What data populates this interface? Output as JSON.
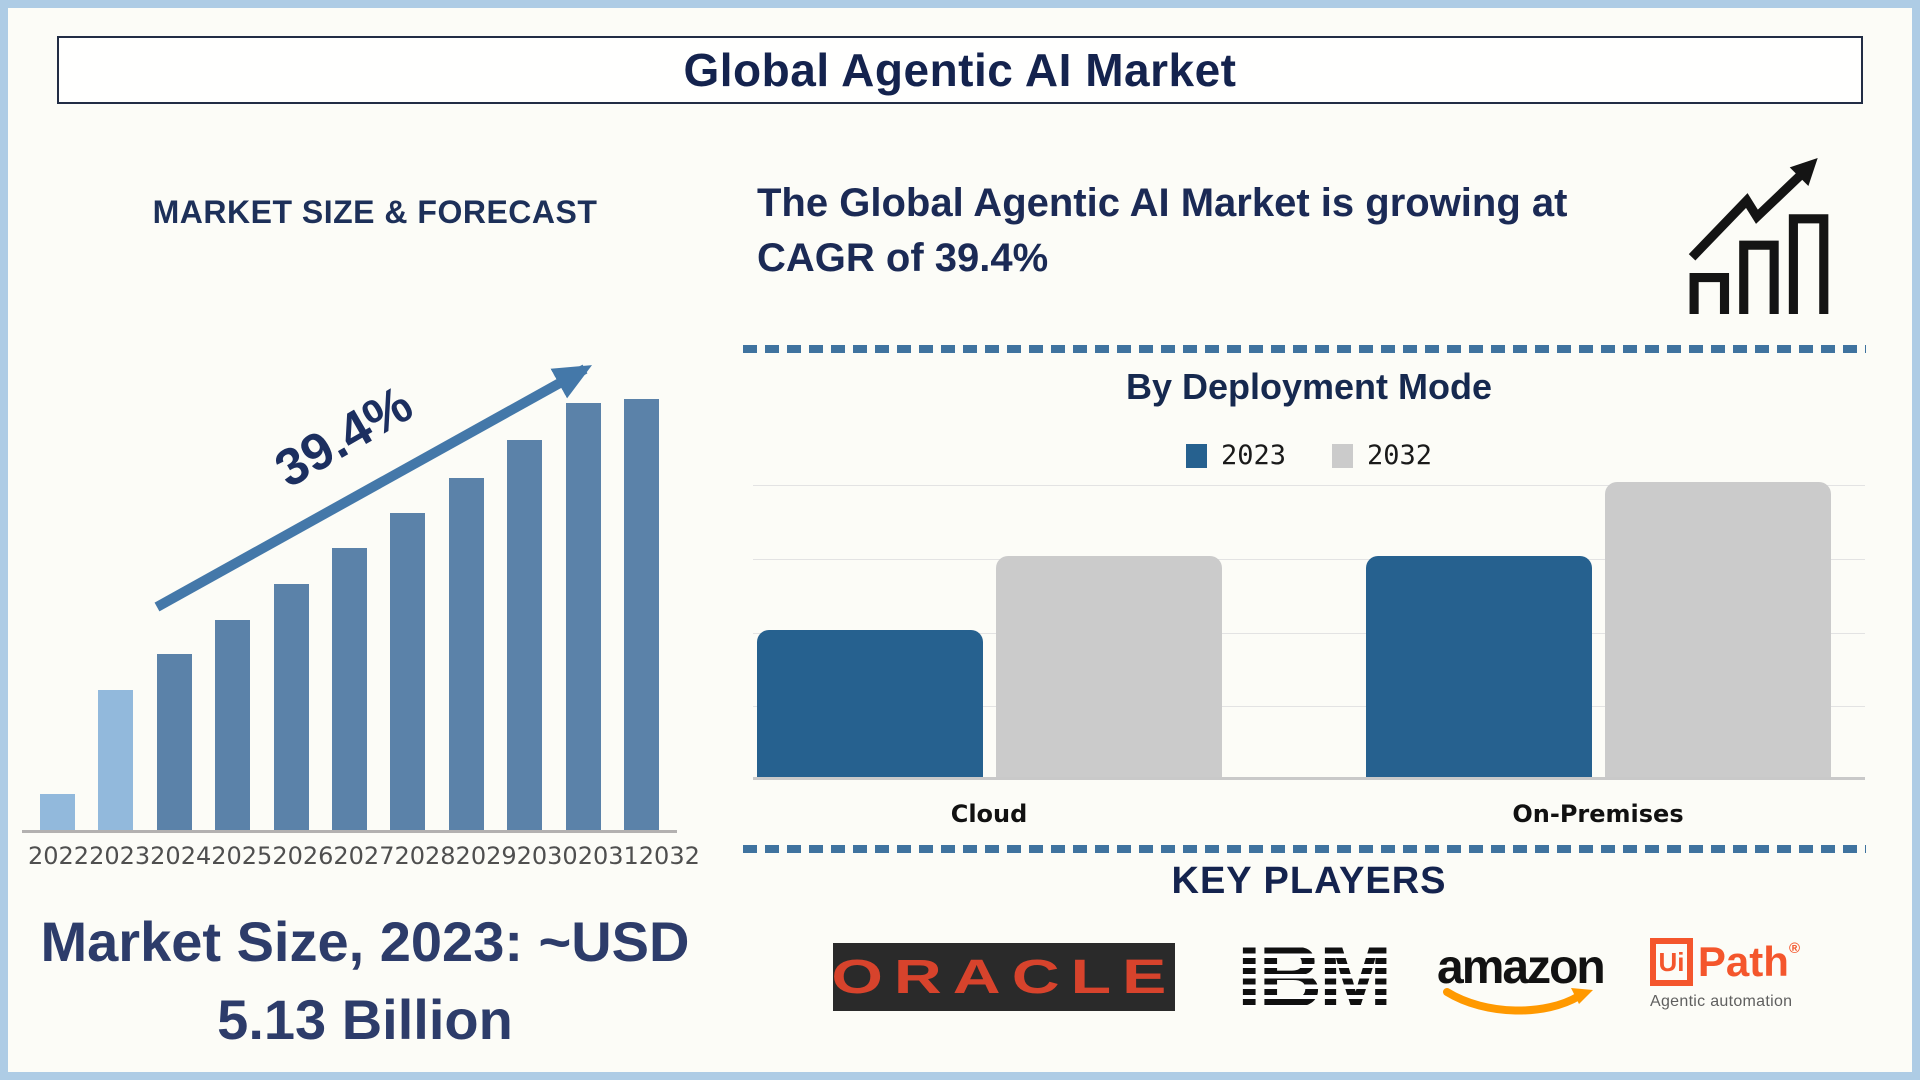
{
  "page": {
    "title": "Global Agentic AI Market",
    "colors": {
      "frame": "#aecce5",
      "background": "#fcfcf7",
      "navy_text": "#1b2a55",
      "arrow_steel_blue": "#4478a9",
      "divider_blue": "#3f739f",
      "forecast_bar_dark": "#5b82a9",
      "forecast_bar_light": "#92b9dc",
      "deployment_blue": "#26618f",
      "deployment_gray": "#cbcbcb",
      "oracle_red": "#d7432c",
      "amazon_orange": "#ff9900",
      "uipath_orange": "#f4562c"
    }
  },
  "left_panel": {
    "heading": "MARKET SIZE & FORECAST",
    "growth_label": "39.4%",
    "caption_line1": "Market Size, 2023: ~USD",
    "caption_line2": "5.13 Billion"
  },
  "right_panel": {
    "headline_line1": "The Global Agentic AI Market is growing at",
    "headline_line2": "CAGR of 39.4%",
    "growth_icon": "growth-chart-icon",
    "deployment_title": "By Deployment Mode",
    "legend": [
      {
        "label": "2023",
        "color": "#26618f"
      },
      {
        "label": "2032",
        "color": "#cbcbcb"
      }
    ],
    "cloud_label": "Cloud",
    "on_premises_label": "On-Premises",
    "key_players_heading": "KEY PLAYERS",
    "key_players": [
      {
        "name": "Oracle",
        "logo_text": "ORACLE"
      },
      {
        "name": "IBM",
        "logo_text": "IBM"
      },
      {
        "name": "Amazon",
        "logo_text": "amazon"
      },
      {
        "name": "UiPath",
        "logo_box_text": "Ui",
        "logo_text": "Path",
        "registered_mark": "®",
        "tagline": "Agentic automation"
      }
    ]
  },
  "chart_data": [
    {
      "type": "bar",
      "title": "MARKET SIZE & FORECAST",
      "categories": [
        "2022",
        "2023",
        "2024",
        "2025",
        "2026",
        "2027",
        "2028",
        "2029",
        "2030",
        "2031",
        "2032"
      ],
      "values_relative_pct": [
        8,
        31.1,
        39.1,
        46.7,
        54.7,
        62.7,
        70.4,
        78.2,
        86.7,
        94.9,
        95.8
      ],
      "bar_colors": [
        "#92b9dc",
        "#92b9dc",
        "#5b82a9",
        "#5b82a9",
        "#5b82a9",
        "#5b82a9",
        "#5b82a9",
        "#5b82a9",
        "#5b82a9",
        "#5b82a9",
        "#5b82a9"
      ],
      "value_axis_shown": false,
      "data_labels_shown": false,
      "annotation": "39.4%",
      "footnote": "Market Size, 2023: ~USD 5.13 Billion",
      "xlabel": "",
      "ylabel": ""
    },
    {
      "type": "bar",
      "title": "By Deployment Mode",
      "categories": [
        "Cloud",
        "On-Premises"
      ],
      "series": [
        {
          "name": "2023",
          "color": "#26618f",
          "values_relative_units": [
            2,
            3
          ]
        },
        {
          "name": "2032",
          "color": "#cbcbcb",
          "values_relative_units": [
            3,
            4
          ]
        }
      ],
      "ylim_units": [
        0,
        4
      ],
      "gridlines": true,
      "legend_position": "top-center",
      "value_axis_shown": false,
      "xlabel": "",
      "ylabel": ""
    }
  ]
}
